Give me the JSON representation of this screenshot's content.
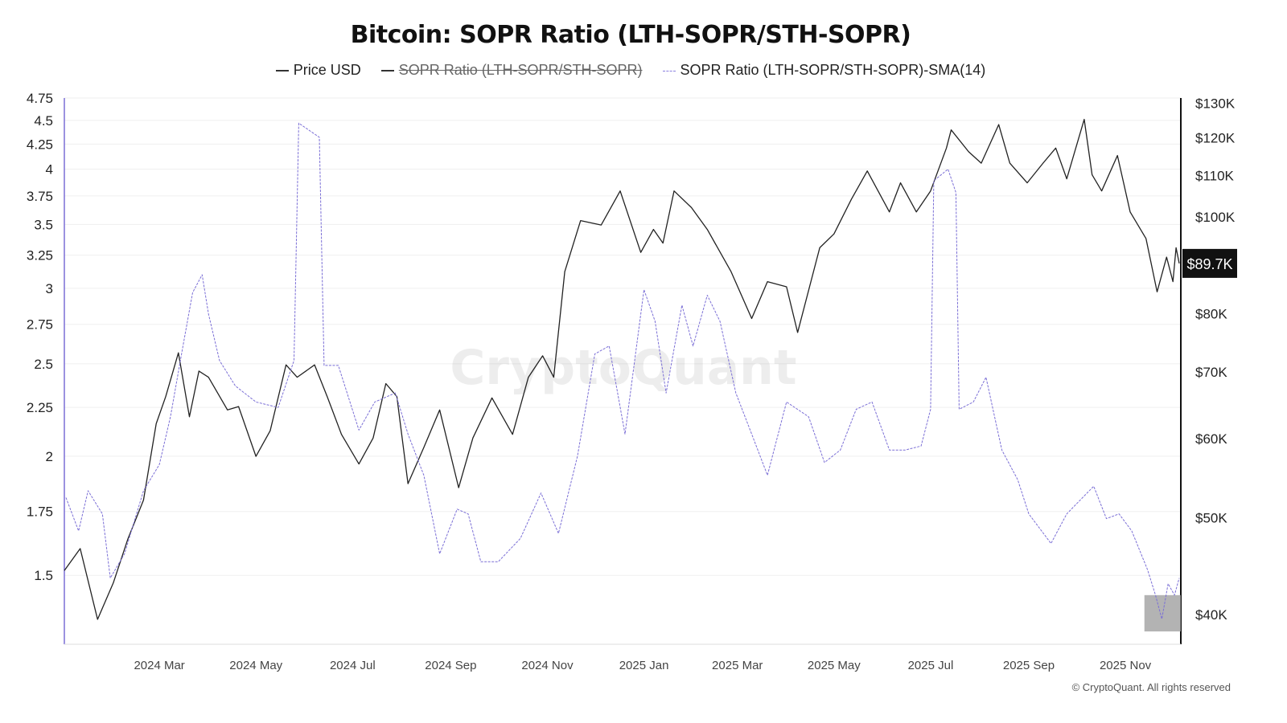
{
  "chart_data": {
    "type": "line",
    "title": "Bitcoin: SOPR Ratio (LTH-SOPR/STH-SOPR)",
    "legend": [
      {
        "name": "Price USD",
        "color": "#222222",
        "style": "solid",
        "hidden": false
      },
      {
        "name": "SOPR Ratio (LTH-SOPR/STH-SOPR)",
        "color": "#222222",
        "style": "solid",
        "hidden": true
      },
      {
        "name": "SOPR Ratio (LTH-SOPR/STH-SOPR)-SMA(14)",
        "color": "#7b6fd6",
        "style": "dashed",
        "hidden": false
      }
    ],
    "legend_placement": "top-center",
    "watermark": "CryptoQuant",
    "copyright": "© CryptoQuant. All rights reserved",
    "x_axis": {
      "type": "date",
      "range": [
        "2024-01-01",
        "2025-12-06"
      ],
      "ticks": [
        {
          "date": "2024-03-01",
          "label": "2024 Mar"
        },
        {
          "date": "2024-05-01",
          "label": "2024 May"
        },
        {
          "date": "2024-07-01",
          "label": "2024 Jul"
        },
        {
          "date": "2024-09-01",
          "label": "2024 Sep"
        },
        {
          "date": "2024-11-01",
          "label": "2024 Nov"
        },
        {
          "date": "2025-01-01",
          "label": "2025 Jan"
        },
        {
          "date": "2025-03-01",
          "label": "2025 Mar"
        },
        {
          "date": "2025-05-01",
          "label": "2025 May"
        },
        {
          "date": "2025-07-01",
          "label": "2025 Jul"
        },
        {
          "date": "2025-09-01",
          "label": "2025 Sep"
        },
        {
          "date": "2025-11-01",
          "label": "2025 Nov"
        }
      ]
    },
    "y_left": {
      "scale": "log",
      "range": [
        1.27,
        4.75
      ],
      "grid": true,
      "ticks": [
        4.75,
        4.5,
        4.25,
        4,
        3.75,
        3.5,
        3.25,
        3,
        2.75,
        2.5,
        2.25,
        2,
        1.75,
        1.5
      ],
      "tick_labels": [
        "4.75",
        "4.5",
        "4.25",
        "4",
        "3.75",
        "3.5",
        "3.25",
        "3",
        "2.75",
        "2.5",
        "2.25",
        "2",
        "1.75",
        "1.5"
      ]
    },
    "y_right": {
      "scale": "log",
      "unit": "USD",
      "range": [
        37300,
        131300
      ],
      "ticks": [
        130000,
        120000,
        110000,
        100000,
        80000,
        70000,
        60000,
        50000,
        40000
      ],
      "tick_labels": [
        "$130K",
        "$120K",
        "$110K",
        "$100K",
        "$80K",
        "$70K",
        "$60K",
        "$50K",
        "$40K"
      ],
      "last_value_label": "$89.7K"
    },
    "series": [
      {
        "name": "Price USD",
        "axis": "right",
        "color": "#222222",
        "points": [
          [
            "2024-01-01",
            44200
          ],
          [
            "2024-01-11",
            46500
          ],
          [
            "2024-01-22",
            39500
          ],
          [
            "2024-02-01",
            43000
          ],
          [
            "2024-02-10",
            47500
          ],
          [
            "2024-02-20",
            52000
          ],
          [
            "2024-02-28",
            62000
          ],
          [
            "2024-03-05",
            66000
          ],
          [
            "2024-03-13",
            73000
          ],
          [
            "2024-03-20",
            63000
          ],
          [
            "2024-03-26",
            70000
          ],
          [
            "2024-04-01",
            69000
          ],
          [
            "2024-04-13",
            64000
          ],
          [
            "2024-04-20",
            64500
          ],
          [
            "2024-05-01",
            57500
          ],
          [
            "2024-05-10",
            61000
          ],
          [
            "2024-05-20",
            71000
          ],
          [
            "2024-05-27",
            69000
          ],
          [
            "2024-06-07",
            71000
          ],
          [
            "2024-06-15",
            66000
          ],
          [
            "2024-06-24",
            60500
          ],
          [
            "2024-07-05",
            56500
          ],
          [
            "2024-07-14",
            60000
          ],
          [
            "2024-07-22",
            68000
          ],
          [
            "2024-07-29",
            66000
          ],
          [
            "2024-08-05",
            54000
          ],
          [
            "2024-08-15",
            58700
          ],
          [
            "2024-08-25",
            64000
          ],
          [
            "2024-09-06",
            53500
          ],
          [
            "2024-09-15",
            60000
          ],
          [
            "2024-09-27",
            65800
          ],
          [
            "2024-10-10",
            60500
          ],
          [
            "2024-10-20",
            69000
          ],
          [
            "2024-10-29",
            72500
          ],
          [
            "2024-11-05",
            69000
          ],
          [
            "2024-11-12",
            88000
          ],
          [
            "2024-11-22",
            99000
          ],
          [
            "2024-12-05",
            98000
          ],
          [
            "2024-12-17",
            106000
          ],
          [
            "2024-12-30",
            92000
          ],
          [
            "2025-01-07",
            97000
          ],
          [
            "2025-01-13",
            94000
          ],
          [
            "2025-01-20",
            106000
          ],
          [
            "2025-01-31",
            102000
          ],
          [
            "2025-02-10",
            97000
          ],
          [
            "2025-02-25",
            88000
          ],
          [
            "2025-03-10",
            79000
          ],
          [
            "2025-03-20",
            86000
          ],
          [
            "2025-04-01",
            85000
          ],
          [
            "2025-04-08",
            76500
          ],
          [
            "2025-04-22",
            93000
          ],
          [
            "2025-05-01",
            96000
          ],
          [
            "2025-05-12",
            104000
          ],
          [
            "2025-05-22",
            111000
          ],
          [
            "2025-06-05",
            101000
          ],
          [
            "2025-06-12",
            108000
          ],
          [
            "2025-06-22",
            101000
          ],
          [
            "2025-07-01",
            106000
          ],
          [
            "2025-07-11",
            117000
          ],
          [
            "2025-07-14",
            122000
          ],
          [
            "2025-07-25",
            116000
          ],
          [
            "2025-08-02",
            113000
          ],
          [
            "2025-08-13",
            123500
          ],
          [
            "2025-08-20",
            113000
          ],
          [
            "2025-08-31",
            108000
          ],
          [
            "2025-09-10",
            113000
          ],
          [
            "2025-09-18",
            117000
          ],
          [
            "2025-09-25",
            109000
          ],
          [
            "2025-10-06",
            125000
          ],
          [
            "2025-10-11",
            110000
          ],
          [
            "2025-10-17",
            106000
          ],
          [
            "2025-10-27",
            115000
          ],
          [
            "2025-11-04",
            101000
          ],
          [
            "2025-11-14",
            95000
          ],
          [
            "2025-11-21",
            84000
          ],
          [
            "2025-11-27",
            91000
          ],
          [
            "2025-12-01",
            86000
          ],
          [
            "2025-12-03",
            93000
          ],
          [
            "2025-12-05",
            89700
          ]
        ]
      },
      {
        "name": "SOPR Ratio (LTH-SOPR/STH-SOPR)-SMA(14)",
        "axis": "left",
        "color": "#7b6fd6",
        "points": [
          [
            "2024-01-02",
            1.81
          ],
          [
            "2024-01-10",
            1.67
          ],
          [
            "2024-01-16",
            1.84
          ],
          [
            "2024-01-25",
            1.74
          ],
          [
            "2024-01-30",
            1.49
          ],
          [
            "2024-02-08",
            1.58
          ],
          [
            "2024-02-20",
            1.84
          ],
          [
            "2024-03-01",
            1.96
          ],
          [
            "2024-03-08",
            2.2
          ],
          [
            "2024-03-15",
            2.56
          ],
          [
            "2024-03-22",
            2.97
          ],
          [
            "2024-03-28",
            3.1
          ],
          [
            "2024-04-01",
            2.82
          ],
          [
            "2024-04-08",
            2.52
          ],
          [
            "2024-04-18",
            2.37
          ],
          [
            "2024-05-01",
            2.28
          ],
          [
            "2024-05-15",
            2.25
          ],
          [
            "2024-05-25",
            2.52
          ],
          [
            "2024-05-28",
            4.47
          ],
          [
            "2024-06-10",
            4.32
          ],
          [
            "2024-06-13",
            2.49
          ],
          [
            "2024-06-22",
            2.49
          ],
          [
            "2024-07-05",
            2.13
          ],
          [
            "2024-07-15",
            2.28
          ],
          [
            "2024-07-28",
            2.33
          ],
          [
            "2024-08-05",
            2.11
          ],
          [
            "2024-08-15",
            1.91
          ],
          [
            "2024-08-25",
            1.58
          ],
          [
            "2024-09-05",
            1.76
          ],
          [
            "2024-09-12",
            1.74
          ],
          [
            "2024-09-20",
            1.55
          ],
          [
            "2024-10-01",
            1.55
          ],
          [
            "2024-10-15",
            1.64
          ],
          [
            "2024-10-28",
            1.83
          ],
          [
            "2024-11-08",
            1.66
          ],
          [
            "2024-11-20",
            2.0
          ],
          [
            "2024-12-01",
            2.56
          ],
          [
            "2024-12-10",
            2.61
          ],
          [
            "2024-12-20",
            2.11
          ],
          [
            "2025-01-01",
            2.99
          ],
          [
            "2025-01-08",
            2.77
          ],
          [
            "2025-01-15",
            2.33
          ],
          [
            "2025-01-25",
            2.88
          ],
          [
            "2025-02-01",
            2.61
          ],
          [
            "2025-02-10",
            2.95
          ],
          [
            "2025-02-18",
            2.77
          ],
          [
            "2025-02-28",
            2.33
          ],
          [
            "2025-03-10",
            2.11
          ],
          [
            "2025-03-20",
            1.91
          ],
          [
            "2025-04-01",
            2.28
          ],
          [
            "2025-04-15",
            2.2
          ],
          [
            "2025-04-25",
            1.97
          ],
          [
            "2025-05-05",
            2.03
          ],
          [
            "2025-05-15",
            2.24
          ],
          [
            "2025-05-25",
            2.28
          ],
          [
            "2025-06-05",
            2.03
          ],
          [
            "2025-06-15",
            2.03
          ],
          [
            "2025-06-25",
            2.05
          ],
          [
            "2025-07-01",
            2.24
          ],
          [
            "2025-07-03",
            3.89
          ],
          [
            "2025-07-12",
            4.0
          ],
          [
            "2025-07-17",
            3.78
          ],
          [
            "2025-07-19",
            2.24
          ],
          [
            "2025-07-28",
            2.28
          ],
          [
            "2025-08-05",
            2.42
          ],
          [
            "2025-08-15",
            2.03
          ],
          [
            "2025-08-25",
            1.89
          ],
          [
            "2025-09-01",
            1.74
          ],
          [
            "2025-09-15",
            1.62
          ],
          [
            "2025-09-25",
            1.74
          ],
          [
            "2025-10-05",
            1.81
          ],
          [
            "2025-10-12",
            1.86
          ],
          [
            "2025-10-20",
            1.72
          ],
          [
            "2025-10-28",
            1.74
          ],
          [
            "2025-11-05",
            1.67
          ],
          [
            "2025-11-15",
            1.52
          ],
          [
            "2025-11-20",
            1.43
          ],
          [
            "2025-11-24",
            1.35
          ],
          [
            "2025-11-28",
            1.47
          ],
          [
            "2025-12-02",
            1.43
          ],
          [
            "2025-12-05",
            1.49
          ]
        ]
      }
    ],
    "annotations": [
      {
        "type": "highlight-box",
        "color": "#a0a0a0",
        "x_range": [
          "2025-11-13",
          "2025-12-06"
        ],
        "y_range_left": [
          1.31,
          1.43
        ]
      }
    ]
  }
}
